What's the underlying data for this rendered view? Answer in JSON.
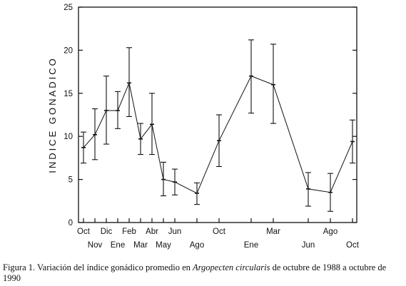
{
  "chart_data": {
    "type": "line",
    "ylabel": "INDICE GONADICO",
    "xlabel": "",
    "ylim": [
      0,
      25
    ],
    "yticks": [
      "0",
      "5",
      "10",
      "15",
      "20",
      "25"
    ],
    "grid": false,
    "x_tick_labels": [
      {
        "label": "Oct",
        "row": 1
      },
      {
        "label": "Nov",
        "row": 2
      },
      {
        "label": "Dic",
        "row": 1
      },
      {
        "label": "Ene",
        "row": 2
      },
      {
        "label": "Feb",
        "row": 1
      },
      {
        "label": "Mar",
        "row": 2
      },
      {
        "label": "Abr",
        "row": 1
      },
      {
        "label": "May",
        "row": 2
      },
      {
        "label": "Jun",
        "row": 1
      },
      {
        "label": "Ago",
        "row": 2
      },
      {
        "label": "Oct",
        "row": 1
      },
      {
        "label": "Ene",
        "row": 2
      },
      {
        "label": "Mar",
        "row": 1
      },
      {
        "label": "Jun",
        "row": 2
      },
      {
        "label": "Ago",
        "row": 1
      },
      {
        "label": "Oct",
        "row": 2
      }
    ],
    "series": [
      {
        "points": [
          {
            "x": "Oct",
            "y": 8.7,
            "low": 6.9,
            "high": 10.5
          },
          {
            "x": "Nov",
            "y": 10.2,
            "low": 7.3,
            "high": 13.2
          },
          {
            "x": "Dic",
            "y": 13.0,
            "low": 9.1,
            "high": 17.0
          },
          {
            "x": "Ene",
            "y": 13.0,
            "low": 10.9,
            "high": 15.2
          },
          {
            "x": "Feb",
            "y": 16.2,
            "low": 12.3,
            "high": 20.3
          },
          {
            "x": "Mar",
            "y": 9.7,
            "low": 7.9,
            "high": 11.5
          },
          {
            "x": "Abr",
            "y": 11.4,
            "low": 7.9,
            "high": 15.0
          },
          {
            "x": "May",
            "y": 5.0,
            "low": 3.1,
            "high": 7.0
          },
          {
            "x": "Jun",
            "y": 4.7,
            "low": 3.2,
            "high": 6.2
          },
          {
            "x": "Ago",
            "y": 3.4,
            "low": 2.1,
            "high": 4.6
          },
          {
            "x": "Oct",
            "y": 9.5,
            "low": 6.5,
            "high": 12.5
          },
          {
            "x": "Ene",
            "y": 17.0,
            "low": 12.7,
            "high": 21.2
          },
          {
            "x": "Mar",
            "y": 16.0,
            "low": 11.5,
            "high": 20.7
          },
          {
            "x": "Jun",
            "y": 3.9,
            "low": 1.9,
            "high": 5.8
          },
          {
            "x": "Ago",
            "y": 3.5,
            "low": 1.3,
            "high": 5.7
          },
          {
            "x": "Oct",
            "y": 9.4,
            "low": 6.9,
            "high": 11.9
          }
        ]
      }
    ]
  },
  "caption": {
    "prefix": "Figura 1. Variación del índice gonádico promedio en ",
    "species": "Argopecten circularis",
    "suffix": " de octubre de 1988 a octubre de 1990"
  }
}
